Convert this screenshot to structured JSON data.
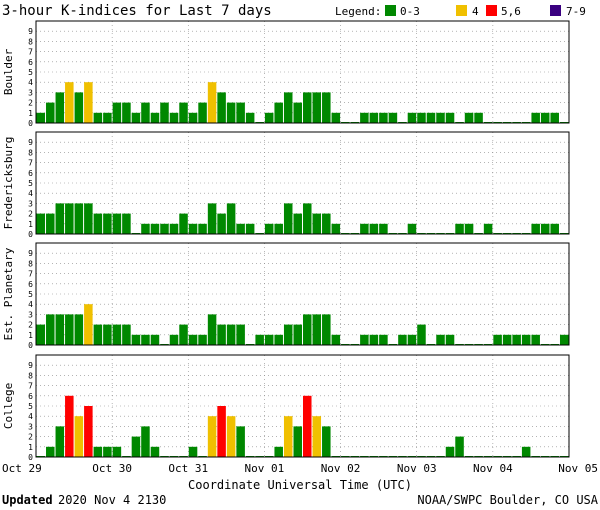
{
  "title": "3-hour K-indices for Last 7 days",
  "legend": {
    "label": "Legend:",
    "items": [
      {
        "label": "0-3",
        "color": "#008800"
      },
      {
        "label": "4",
        "color": "#f0c000"
      },
      {
        "label": "5,6",
        "color": "#ff0000"
      },
      {
        "label": "7-9",
        "color": "#3a0080"
      }
    ]
  },
  "x_ticks": [
    "Oct 29",
    "Oct 30",
    "Oct 31",
    "Nov 01",
    "Nov 02",
    "Nov 03",
    "Nov 04",
    "Nov 05"
  ],
  "xlabel": "Coordinate Universal Time (UTC)",
  "footer": {
    "updated_label": "Updated",
    "updated_value": " 2020 Nov  4 2130",
    "credit": "NOAA/SWPC Boulder, CO USA"
  },
  "colors": {
    "quiet": "#008800",
    "k4": "#f0c000",
    "storm": "#ff0000",
    "severe": "#3a0080"
  },
  "chart_data": {
    "type": "bar",
    "y_range": [
      0,
      9
    ],
    "bars_per_day": 8,
    "series": [
      {
        "name": "Boulder",
        "values": [
          1,
          2,
          3,
          4,
          3,
          4,
          1,
          1,
          2,
          2,
          1,
          2,
          1,
          2,
          1,
          2,
          1,
          2,
          4,
          3,
          2,
          2,
          1,
          0,
          1,
          2,
          3,
          2,
          3,
          3,
          3,
          1,
          0,
          0,
          1,
          1,
          1,
          1,
          0,
          1,
          1,
          1,
          1,
          1,
          0,
          1,
          1,
          0,
          0,
          0,
          0,
          0,
          1,
          1,
          1,
          0
        ]
      },
      {
        "name": "Fredericksburg",
        "values": [
          2,
          2,
          3,
          3,
          3,
          3,
          2,
          2,
          2,
          2,
          0,
          1,
          1,
          1,
          1,
          2,
          1,
          1,
          3,
          2,
          3,
          1,
          1,
          0,
          1,
          1,
          3,
          2,
          3,
          2,
          2,
          1,
          0,
          0,
          1,
          1,
          1,
          0,
          0,
          1,
          0,
          0,
          0,
          0,
          1,
          1,
          0,
          1,
          0,
          0,
          0,
          0,
          1,
          1,
          1,
          0
        ]
      },
      {
        "name": "Est. Planetary",
        "values": [
          2,
          3,
          3,
          3,
          3,
          4,
          2,
          2,
          2,
          2,
          1,
          1,
          1,
          0,
          1,
          2,
          1,
          1,
          3,
          2,
          2,
          2,
          0,
          1,
          1,
          1,
          2,
          2,
          3,
          3,
          3,
          1,
          0,
          0,
          1,
          1,
          1,
          0,
          1,
          1,
          2,
          0,
          1,
          1,
          0,
          0,
          0,
          0,
          1,
          1,
          1,
          1,
          1,
          0,
          0,
          1
        ]
      },
      {
        "name": "College",
        "values": [
          0,
          1,
          3,
          6,
          4,
          5,
          1,
          1,
          1,
          0,
          2,
          3,
          1,
          0,
          0,
          0,
          1,
          0,
          4,
          5,
          4,
          3,
          0,
          0,
          0,
          1,
          4,
          3,
          6,
          4,
          3,
          0,
          0,
          0,
          0,
          0,
          0,
          0,
          0,
          0,
          0,
          0,
          0,
          1,
          2,
          0,
          0,
          0,
          0,
          0,
          0,
          1,
          0,
          0,
          0,
          0
        ]
      }
    ]
  }
}
